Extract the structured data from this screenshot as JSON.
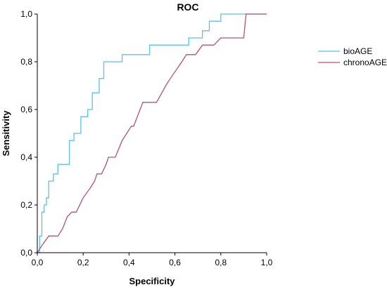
{
  "chart_data": {
    "type": "line",
    "title": "ROC",
    "xlabel": "Specificity",
    "ylabel": "Sensitivity",
    "xlim": [
      0,
      1
    ],
    "ylim": [
      0,
      1
    ],
    "x_ticks": [
      "0,0",
      "0,2",
      "0,4",
      "0,6",
      "0,8",
      "1,0"
    ],
    "y_ticks": [
      "0,0",
      "0,2",
      "0,4",
      "0,6",
      "0,8",
      "1,0"
    ],
    "grid": false,
    "legend_position": "right",
    "series": [
      {
        "name": "bioAGE",
        "color": "#5bc0eb",
        "x": [
          0,
          0.01,
          0.01,
          0.02,
          0.02,
          0.03,
          0.03,
          0.04,
          0.04,
          0.05,
          0.05,
          0.07,
          0.07,
          0.09,
          0.09,
          0.14,
          0.14,
          0.16,
          0.16,
          0.19,
          0.19,
          0.22,
          0.22,
          0.24,
          0.24,
          0.27,
          0.27,
          0.29,
          0.29,
          0.37,
          0.37,
          0.49,
          0.49,
          0.66,
          0.66,
          0.72,
          0.72,
          0.75,
          0.75,
          0.8,
          0.8,
          1.0
        ],
        "y": [
          0,
          0,
          0.07,
          0.07,
          0.17,
          0.17,
          0.2,
          0.2,
          0.23,
          0.23,
          0.3,
          0.3,
          0.33,
          0.33,
          0.37,
          0.37,
          0.47,
          0.47,
          0.5,
          0.5,
          0.57,
          0.57,
          0.6,
          0.6,
          0.67,
          0.67,
          0.73,
          0.73,
          0.8,
          0.8,
          0.83,
          0.83,
          0.87,
          0.87,
          0.9,
          0.9,
          0.93,
          0.93,
          0.97,
          0.97,
          1.0,
          1.0
        ]
      },
      {
        "name": "chronoAGE",
        "color": "#b5546e",
        "x": [
          0,
          0.02,
          0.05,
          0.09,
          0.11,
          0.13,
          0.15,
          0.17,
          0.2,
          0.23,
          0.25,
          0.26,
          0.28,
          0.3,
          0.31,
          0.34,
          0.37,
          0.39,
          0.41,
          0.42,
          0.46,
          0.52,
          0.56,
          0.58,
          0.63,
          0.65,
          0.69,
          0.72,
          0.74,
          0.77,
          0.8,
          0.85,
          0.9,
          0.91,
          0.93,
          1.0
        ],
        "y": [
          0,
          0.03,
          0.07,
          0.07,
          0.1,
          0.15,
          0.17,
          0.17,
          0.23,
          0.27,
          0.3,
          0.33,
          0.33,
          0.37,
          0.4,
          0.4,
          0.47,
          0.5,
          0.53,
          0.53,
          0.63,
          0.63,
          0.7,
          0.73,
          0.8,
          0.83,
          0.83,
          0.87,
          0.87,
          0.87,
          0.9,
          0.9,
          0.9,
          1.0,
          1.0,
          1.0
        ]
      }
    ]
  }
}
